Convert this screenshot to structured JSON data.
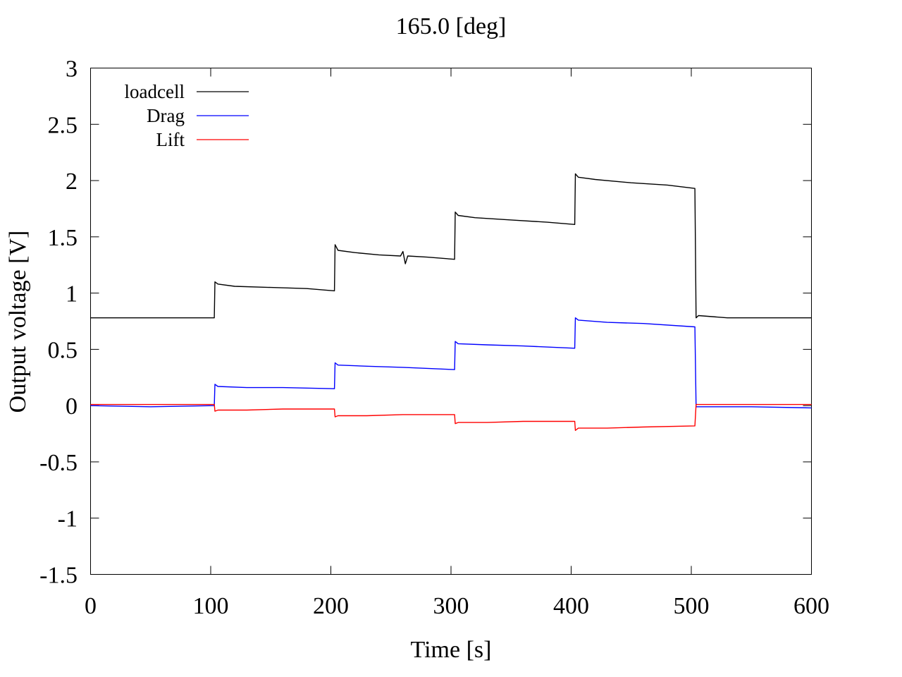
{
  "chart_data": {
    "type": "line",
    "title": "165.0 [deg]",
    "xlabel": "Time [s]",
    "ylabel": "Output voltage [V]",
    "xlim": [
      0,
      600
    ],
    "ylim": [
      -1.5,
      3
    ],
    "xticks": [
      0,
      100,
      200,
      300,
      400,
      500,
      600
    ],
    "yticks": [
      -1.5,
      -1,
      -0.5,
      0,
      0.5,
      1,
      1.5,
      2,
      2.5,
      3
    ],
    "xtick_labels": [
      "0",
      "100",
      "200",
      "300",
      "400",
      "500",
      "600"
    ],
    "ytick_labels": [
      "-1.5",
      "-1",
      "-0.5",
      "0",
      "0.5",
      "1",
      "1.5",
      "2",
      "2.5",
      "3"
    ],
    "grid": false,
    "legend_position": "top-left",
    "series": [
      {
        "name": "loadcell",
        "color": "#000000",
        "x": [
          0,
          103,
          103.5,
          106,
          120,
          150,
          180,
          203,
          203.5,
          206,
          220,
          240,
          258,
          260,
          262,
          264,
          280,
          303,
          303.5,
          306,
          320,
          350,
          380,
          403,
          403.5,
          406,
          420,
          450,
          480,
          503,
          504,
          506,
          530,
          560,
          600
        ],
        "y": [
          0.78,
          0.78,
          1.1,
          1.08,
          1.06,
          1.05,
          1.04,
          1.02,
          1.43,
          1.38,
          1.36,
          1.34,
          1.33,
          1.37,
          1.26,
          1.33,
          1.32,
          1.3,
          1.72,
          1.69,
          1.67,
          1.65,
          1.63,
          1.61,
          2.06,
          2.03,
          2.01,
          1.98,
          1.96,
          1.93,
          0.78,
          0.8,
          0.78,
          0.78,
          0.78
        ]
      },
      {
        "name": "Drag",
        "color": "#0000ff",
        "x": [
          0,
          50,
          103,
          103.5,
          106,
          130,
          160,
          203,
          203.5,
          206,
          230,
          260,
          303,
          303.5,
          306,
          330,
          360,
          403,
          403.5,
          406,
          430,
          460,
          503,
          504,
          550,
          600
        ],
        "y": [
          0.0,
          -0.01,
          0.0,
          0.19,
          0.17,
          0.16,
          0.16,
          0.15,
          0.38,
          0.36,
          0.35,
          0.34,
          0.32,
          0.57,
          0.55,
          0.54,
          0.53,
          0.51,
          0.78,
          0.76,
          0.74,
          0.73,
          0.7,
          -0.01,
          -0.01,
          -0.02
        ]
      },
      {
        "name": "Lift",
        "color": "#ff0000",
        "x": [
          0,
          50,
          103,
          103.5,
          106,
          130,
          160,
          203,
          203.5,
          206,
          230,
          260,
          303,
          303.5,
          306,
          330,
          360,
          403,
          403.5,
          406,
          430,
          460,
          503,
          504,
          550,
          600
        ],
        "y": [
          0.01,
          0.01,
          0.01,
          -0.05,
          -0.04,
          -0.04,
          -0.03,
          -0.03,
          -0.1,
          -0.09,
          -0.09,
          -0.08,
          -0.08,
          -0.16,
          -0.15,
          -0.15,
          -0.14,
          -0.14,
          -0.22,
          -0.2,
          -0.2,
          -0.19,
          -0.18,
          0.01,
          0.01,
          0.01
        ]
      }
    ]
  }
}
